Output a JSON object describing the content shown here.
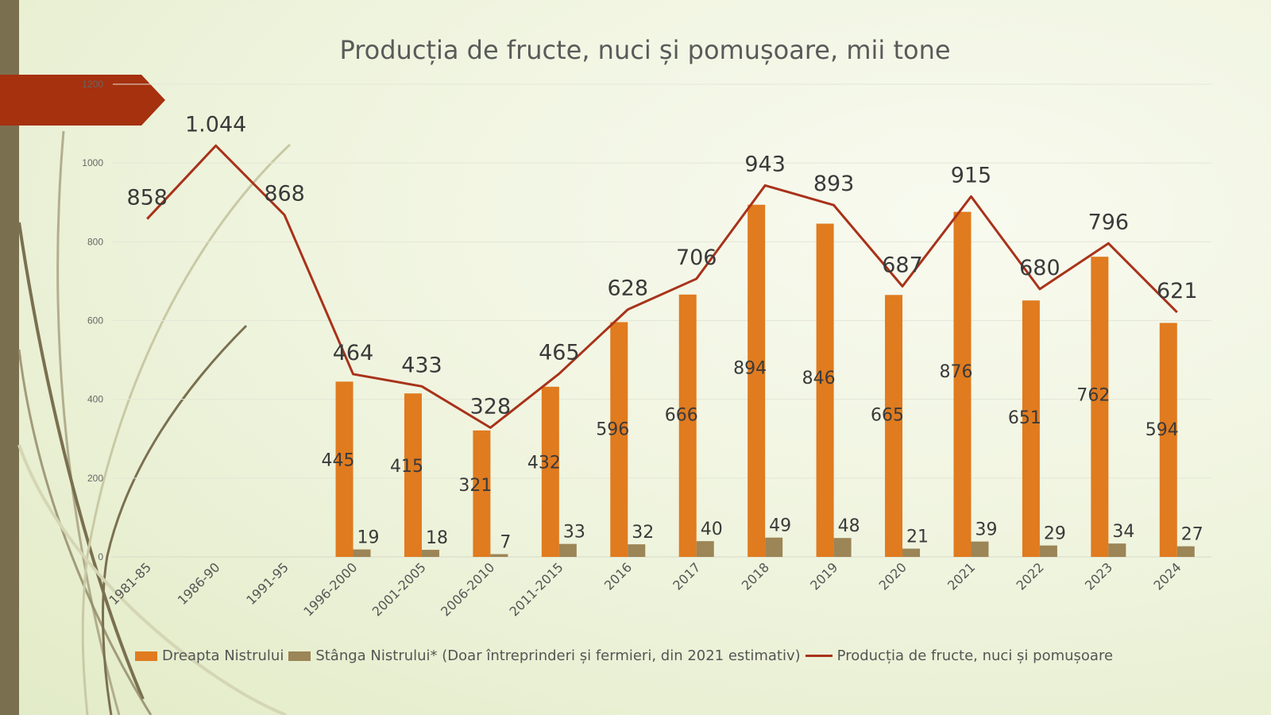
{
  "colors": {
    "dreapta": "#e07b1f",
    "stanga": "#9c8556",
    "total": "#a8321a",
    "ribbon": "#a5310f"
  },
  "chart_data": {
    "type": "bar",
    "title": "Producția de fructe, nuci și pomușoare, mii tone",
    "categories": [
      "1981-85",
      "1986-90",
      "1991-95",
      "1996-2000",
      "2001-2005",
      "2006-2010",
      "2011-2015",
      "2016",
      "2017",
      "2018",
      "2019",
      "2020",
      "2021",
      "2022",
      "2023",
      "2024"
    ],
    "ylim": [
      0,
      1200
    ],
    "yticks": [
      "0",
      "200",
      "400",
      "600",
      "800",
      "1000",
      "1200"
    ],
    "grid": true,
    "legend_position": "bottom",
    "series": [
      {
        "name": "Dreapta Nistrului",
        "type": "bar",
        "values": [
          null,
          null,
          null,
          445,
          415,
          321,
          432,
          596,
          666,
          894,
          846,
          665,
          876,
          651,
          762,
          594
        ]
      },
      {
        "name": "Stânga Nistrului* (Doar întreprinderi și fermieri, din 2021 estimativ)",
        "type": "bar",
        "values": [
          null,
          null,
          null,
          19,
          18,
          7,
          33,
          32,
          40,
          49,
          48,
          21,
          39,
          29,
          34,
          27
        ]
      },
      {
        "name": "Producția de fructe, nuci și pomușoare",
        "type": "line",
        "values": [
          858,
          1044,
          868,
          464,
          433,
          328,
          465,
          628,
          706,
          943,
          893,
          687,
          915,
          680,
          796,
          621
        ],
        "labels": [
          "858",
          "1.044",
          "868",
          "464",
          "433",
          "328",
          "465",
          "628",
          "706",
          "943",
          "893",
          "687",
          "915",
          "680",
          "796",
          "621"
        ]
      }
    ]
  }
}
